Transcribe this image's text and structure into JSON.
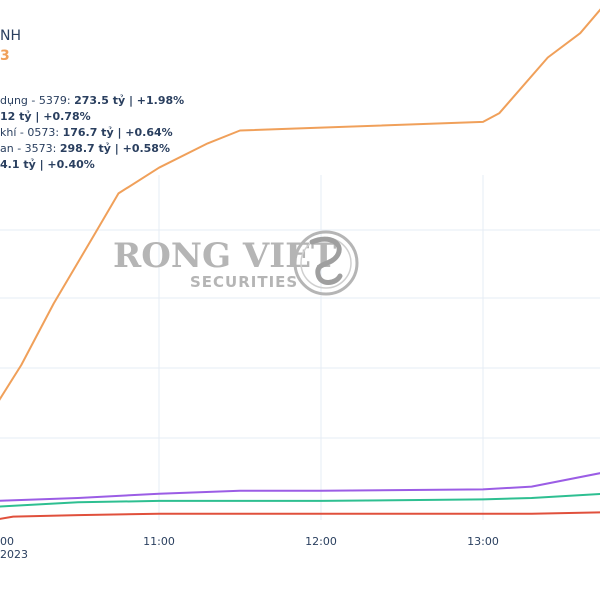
{
  "header": {
    "title_fragment": "NH",
    "subtitle_fragment": "3"
  },
  "watermark": {
    "brand": "RONG VIET",
    "sub": "SECURITIES"
  },
  "legend": [
    {
      "prefix": "dụng - 5379: ",
      "value": "273.5 tỷ | +1.98%"
    },
    {
      "prefix": "",
      "value": "12 tỷ | +0.78%"
    },
    {
      "prefix": " khí - 0573: ",
      "value": "176.7 tỷ | +0.64%"
    },
    {
      "prefix": "an - 3573: ",
      "value": "298.7 tỷ | +0.58%"
    },
    {
      "prefix": "",
      "value": "4.1 tỷ | +0.40%"
    }
  ],
  "colors": {
    "orange": "#f0a05a",
    "purple": "#9b5de5",
    "green": "#2ebf91",
    "red": "#e0503c",
    "grid": "#e6ecf4",
    "watermark": "#b5b5b5"
  },
  "chart_data": {
    "type": "line",
    "x_ticks": [
      "00",
      "11:00",
      "12:00",
      "13:00"
    ],
    "x_sub_label": "2023",
    "series": [
      {
        "color": "orange",
        "points": [
          [
            10.0,
            1.73
          ],
          [
            10.15,
            2.0
          ],
          [
            10.35,
            2.43
          ],
          [
            10.6,
            2.91
          ],
          [
            10.75,
            3.2
          ],
          [
            11.0,
            3.38
          ],
          [
            11.3,
            3.55
          ],
          [
            11.5,
            3.64
          ],
          [
            12.0,
            3.66
          ],
          [
            13.0,
            3.7
          ],
          [
            13.1,
            3.76
          ],
          [
            13.4,
            4.15
          ],
          [
            13.6,
            4.32
          ],
          [
            13.75,
            4.52
          ]
        ]
      },
      {
        "color": "purple",
        "points": [
          [
            10.0,
            1.05
          ],
          [
            10.5,
            1.07
          ],
          [
            11.0,
            1.1
          ],
          [
            11.5,
            1.12
          ],
          [
            12.0,
            1.12
          ],
          [
            13.0,
            1.13
          ],
          [
            13.3,
            1.15
          ],
          [
            13.75,
            1.25
          ]
        ]
      },
      {
        "color": "green",
        "points": [
          [
            10.0,
            1.01
          ],
          [
            10.5,
            1.04
          ],
          [
            11.0,
            1.05
          ],
          [
            11.5,
            1.05
          ],
          [
            12.0,
            1.05
          ],
          [
            13.0,
            1.06
          ],
          [
            13.3,
            1.07
          ],
          [
            13.75,
            1.1
          ]
        ]
      },
      {
        "color": "red",
        "points": [
          [
            10.0,
            0.92
          ],
          [
            10.1,
            0.94
          ],
          [
            10.5,
            0.95
          ],
          [
            11.0,
            0.96
          ],
          [
            12.0,
            0.96
          ],
          [
            13.0,
            0.96
          ],
          [
            13.3,
            0.96
          ],
          [
            13.75,
            0.97
          ]
        ]
      }
    ]
  }
}
